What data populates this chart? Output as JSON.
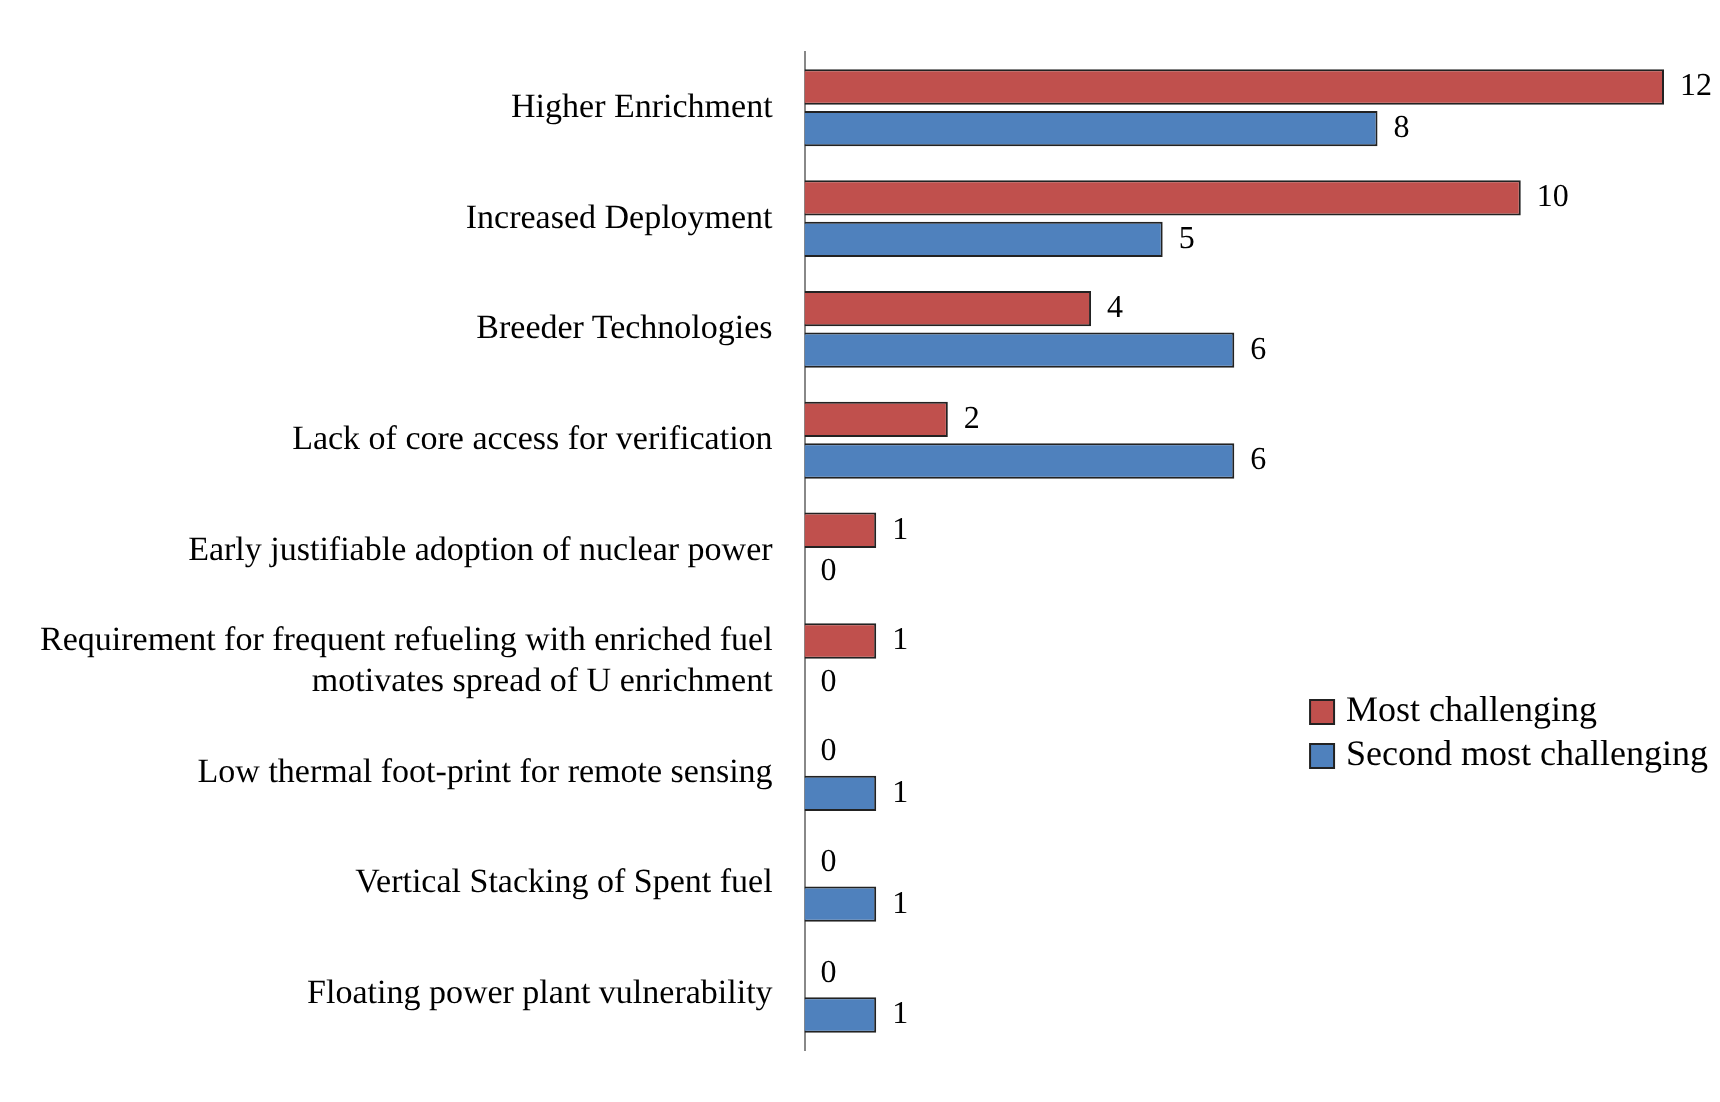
{
  "chart_data": {
    "type": "bar",
    "orientation": "horizontal",
    "data_labels": true,
    "legend": "right",
    "categories": [
      "Higher Enrichment",
      "Increased Deployment",
      "Breeder Technologies",
      "Lack of core access for verification",
      "Early justifiable adoption of nuclear power",
      "Requirement for frequent refueling with enriched fuel motivates spread of U enrichment",
      "Low thermal foot-print for remote sensing",
      "Vertical Stacking of Spent fuel",
      "Floating power plant vulnerability"
    ],
    "series": [
      {
        "name": "Most challenging",
        "color": "#c0504d",
        "values": [
          12,
          10,
          4,
          2,
          1,
          1,
          0,
          0,
          0
        ]
      },
      {
        "name": "Second most challenging",
        "color": "#4f81bd",
        "values": [
          8,
          5,
          6,
          6,
          0,
          0,
          1,
          1,
          1
        ]
      }
    ]
  }
}
